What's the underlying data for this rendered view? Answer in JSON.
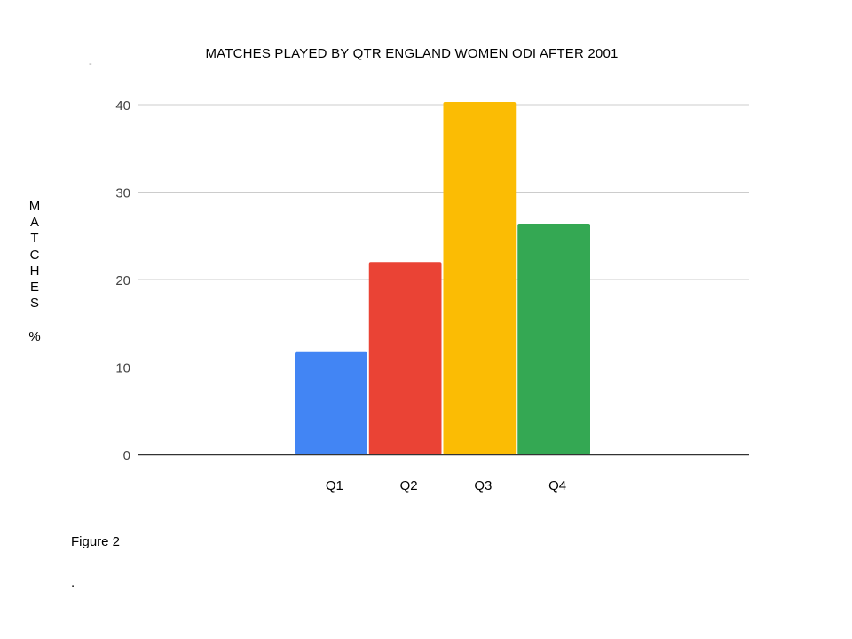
{
  "chart_data": {
    "type": "bar",
    "title": "MATCHES PLAYED BY QTR ENGLAND WOMEN ODI AFTER 2001",
    "xlabel": "",
    "ylabel": "MATCHES",
    "yunit": "%",
    "categories": [
      "Q1",
      "Q2",
      "Q3",
      "Q4"
    ],
    "values": [
      11.7,
      22.0,
      40.3,
      26.4
    ],
    "colors": [
      "#4285f4",
      "#ea4335",
      "#fbbc04",
      "#34a853"
    ],
    "ylim": [
      0,
      40
    ],
    "yticks": [
      0,
      10,
      20,
      30,
      40
    ],
    "grid": true,
    "legend": "none"
  },
  "caption": "Figure 2",
  "trailing_mark": ".",
  "top_mark": "-"
}
